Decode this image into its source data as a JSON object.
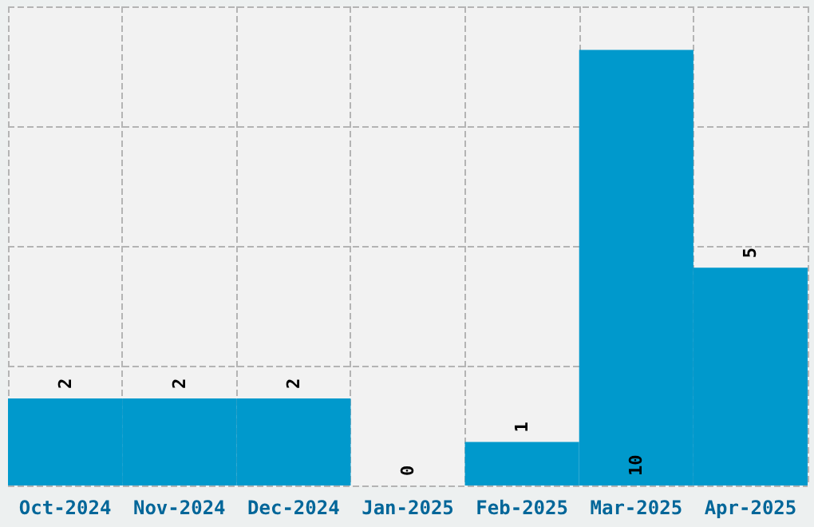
{
  "chart_data": {
    "type": "bar",
    "categories": [
      "Oct-2024",
      "Nov-2024",
      "Dec-2024",
      "Jan-2025",
      "Feb-2025",
      "Mar-2025",
      "Apr-2025"
    ],
    "values": [
      2,
      2,
      2,
      0,
      1,
      10,
      5
    ],
    "color": "#0099cc",
    "ylim": [
      0,
      11
    ],
    "yticks": [
      {
        "value": 0,
        "label": null
      },
      {
        "value": 2.75,
        "label": null
      },
      {
        "value": 5.5,
        "label": null
      },
      {
        "value": 8.25,
        "label": null
      },
      {
        "value": 11,
        "label": null
      }
    ],
    "tick_labels": "x",
    "grid": true,
    "data_labels": true
  }
}
